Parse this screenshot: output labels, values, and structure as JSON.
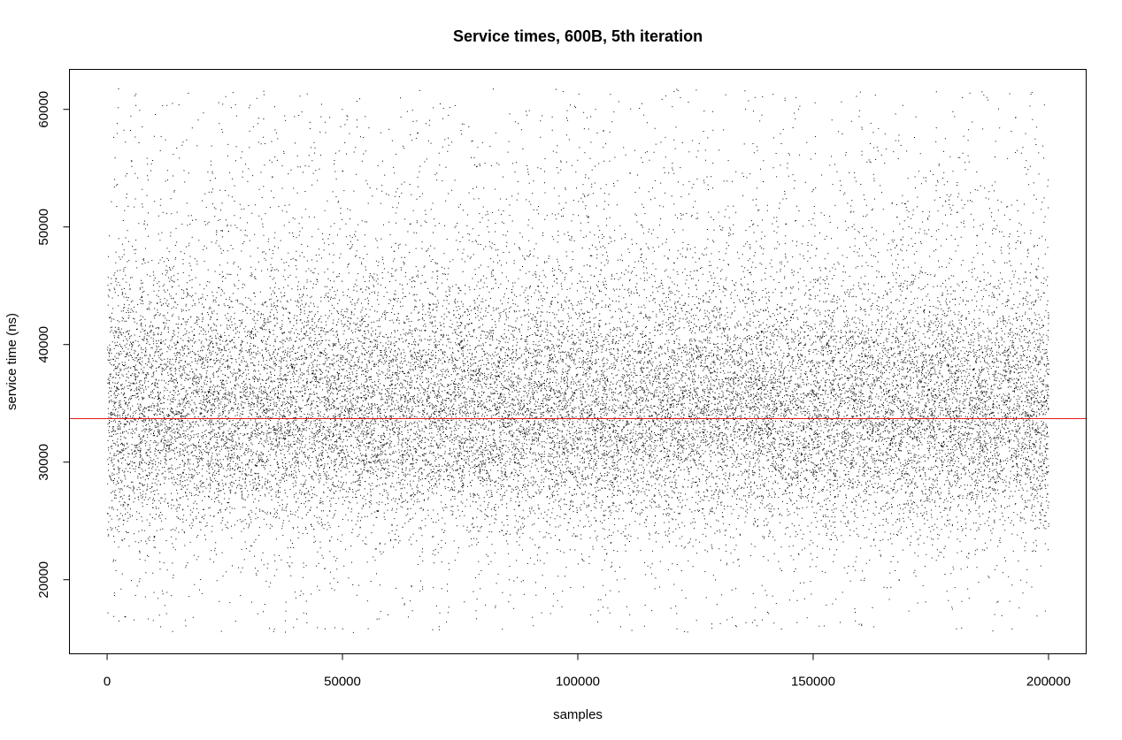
{
  "chart_data": {
    "type": "scatter",
    "title": "Service times, 600B, 5th iteration",
    "xlabel": "samples",
    "ylabel": "service time (ns)",
    "xlim": [
      -8000,
      208000
    ],
    "ylim": [
      13700,
      63400
    ],
    "x_ticks": [
      0,
      50000,
      100000,
      150000,
      200000
    ],
    "x_tick_labels": [
      "0",
      "50000",
      "100000",
      "150000",
      "200000"
    ],
    "y_ticks": [
      20000,
      30000,
      40000,
      50000,
      60000
    ],
    "y_tick_labels": [
      "20000",
      "30000",
      "40000",
      "50000",
      "60000"
    ],
    "n_samples": 200000,
    "x_range": [
      0,
      200000
    ],
    "y_range": [
      15500,
      61800
    ],
    "central_mass_range": [
      26000,
      42000
    ],
    "approx_density_peak": 34000,
    "mean_line": {
      "value": 33700,
      "color": "#e31a1c"
    },
    "point_color": "#000000",
    "grid": false,
    "legend": "none"
  }
}
